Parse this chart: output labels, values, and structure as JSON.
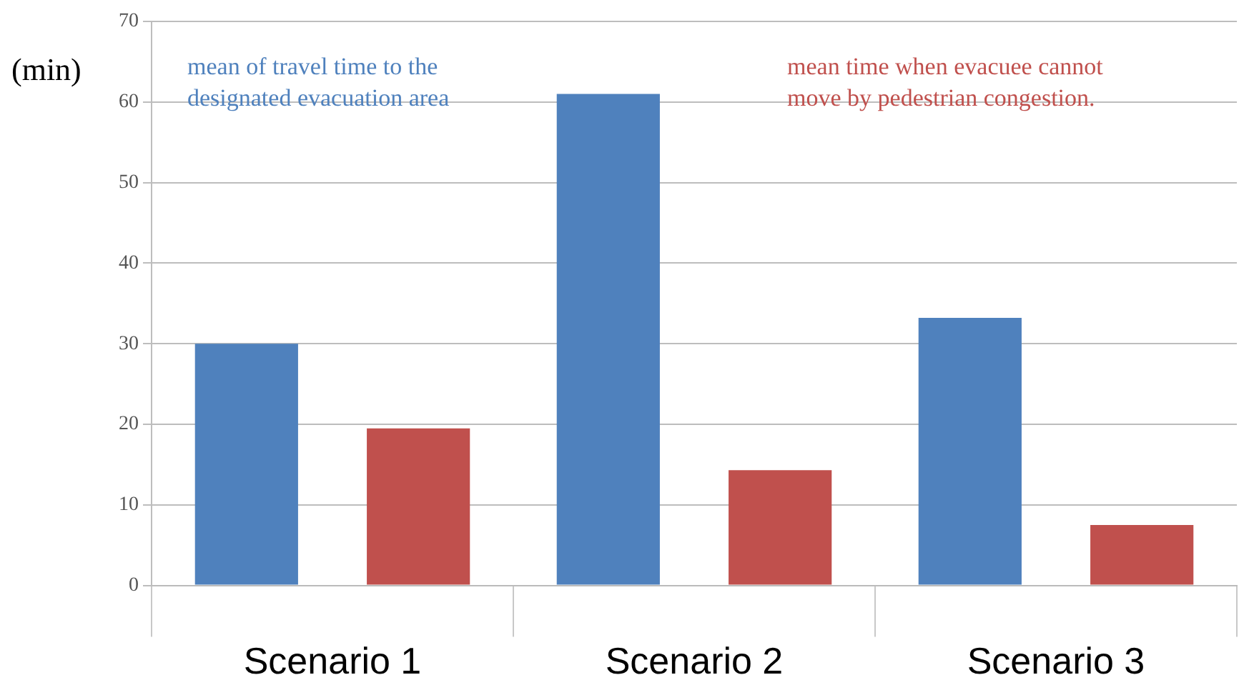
{
  "chart_data": {
    "type": "bar",
    "ylabel": "(min)",
    "categories": [
      "Scenario 1",
      "Scenario 2",
      "Scenario 3"
    ],
    "series": [
      {
        "name": "mean of travel time to the designated evacuation area",
        "color": "#4f81bd",
        "values": [
          30,
          61,
          33.2
        ]
      },
      {
        "name": "mean time when evacuee cannot move by pedestrian congestion.",
        "color": "#c0504d",
        "values": [
          19.5,
          14.3,
          7.5
        ]
      }
    ],
    "ylim": [
      0,
      70
    ],
    "yticks": [
      0,
      10,
      20,
      30,
      40,
      50,
      60,
      70
    ],
    "grid": "y",
    "legend": "top"
  }
}
